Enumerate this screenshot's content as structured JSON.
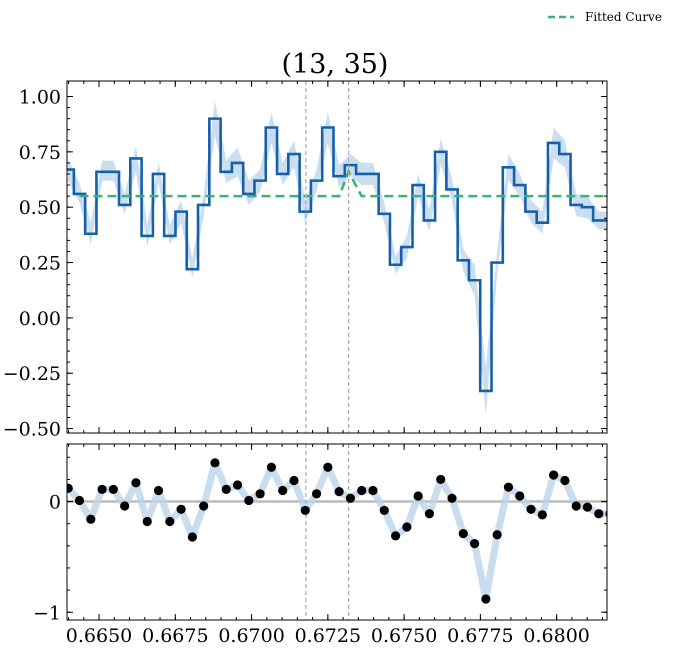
{
  "title": "(13, 35)",
  "legend": {
    "label": "Fitted Curve",
    "color": "#3cb371",
    "placement": "top-right"
  },
  "colors": {
    "data_line": "#1560a8",
    "band": "#a9c8e6",
    "fit": "#3cb371",
    "residual_point": "#000000",
    "residual_band": "#bcd4ea",
    "zero_line": "#bbbbbb",
    "vline": "#aaaaaa"
  },
  "chart_data": [
    {
      "type": "line",
      "panel": "main",
      "drawstyle": "steps-mid",
      "title": "(13, 35)",
      "xlabel": "",
      "ylabel": "",
      "xlim": [
        0.66395,
        0.68165
      ],
      "ylim": [
        -0.52,
        1.07
      ],
      "yticks": [
        -0.5,
        -0.25,
        0.0,
        0.25,
        0.5,
        0.75,
        1.0
      ],
      "ytick_labels": [
        "−0.50",
        "−0.25",
        "0.00",
        "0.25",
        "0.50",
        "0.75",
        "1.00"
      ],
      "vlines": [
        0.67178,
        0.67318
      ],
      "x": [
        0.66399,
        0.66436,
        0.66473,
        0.6651,
        0.66547,
        0.66584,
        0.66621,
        0.66658,
        0.66695,
        0.66732,
        0.66769,
        0.66806,
        0.66843,
        0.6688,
        0.66917,
        0.66954,
        0.66991,
        0.67028,
        0.67065,
        0.67102,
        0.67139,
        0.67176,
        0.67213,
        0.6725,
        0.67287,
        0.67324,
        0.67361,
        0.67398,
        0.67435,
        0.67472,
        0.67509,
        0.67546,
        0.67583,
        0.6762,
        0.67657,
        0.67694,
        0.67731,
        0.67768,
        0.67805,
        0.67842,
        0.67879,
        0.67916,
        0.67953,
        0.6799,
        0.68027,
        0.68064,
        0.68101,
        0.68138,
        0.68175
      ],
      "series": [
        {
          "name": "",
          "values": [
            0.67,
            0.56,
            0.38,
            0.66,
            0.66,
            0.51,
            0.72,
            0.37,
            0.65,
            0.37,
            0.48,
            0.22,
            0.51,
            0.9,
            0.66,
            0.7,
            0.56,
            0.62,
            0.86,
            0.65,
            0.74,
            0.48,
            0.62,
            0.86,
            0.64,
            0.69,
            0.65,
            0.65,
            0.47,
            0.24,
            0.32,
            0.6,
            0.44,
            0.75,
            0.58,
            0.26,
            0.17,
            -0.33,
            0.25,
            0.68,
            0.6,
            0.48,
            0.43,
            0.79,
            0.74,
            0.51,
            0.5,
            0.44,
            0.44
          ],
          "lower": [
            0.62,
            0.52,
            0.33,
            0.62,
            0.62,
            0.47,
            0.66,
            0.32,
            0.61,
            0.33,
            0.43,
            0.18,
            0.46,
            0.82,
            0.61,
            0.64,
            0.51,
            0.57,
            0.79,
            0.6,
            0.68,
            0.43,
            0.57,
            0.79,
            0.59,
            0.64,
            0.6,
            0.6,
            0.43,
            0.2,
            0.27,
            0.55,
            0.39,
            0.69,
            0.53,
            0.21,
            0.1,
            -0.44,
            0.2,
            0.62,
            0.55,
            0.43,
            0.38,
            0.72,
            0.68,
            0.46,
            0.45,
            0.4,
            0.4
          ],
          "upper": [
            0.72,
            0.61,
            0.43,
            0.71,
            0.71,
            0.56,
            0.78,
            0.42,
            0.7,
            0.42,
            0.53,
            0.27,
            0.56,
            0.98,
            0.71,
            0.77,
            0.62,
            0.67,
            0.93,
            0.7,
            0.8,
            0.53,
            0.67,
            0.93,
            0.69,
            0.74,
            0.7,
            0.7,
            0.52,
            0.28,
            0.37,
            0.65,
            0.49,
            0.81,
            0.63,
            0.31,
            0.24,
            -0.22,
            0.3,
            0.74,
            0.65,
            0.53,
            0.48,
            0.86,
            0.8,
            0.56,
            0.55,
            0.48,
            0.48
          ]
        },
        {
          "name": "Fitted Curve",
          "x": [
            0.66436,
            0.6725,
            0.67287,
            0.67318,
            0.67361,
            0.68165
          ],
          "values": [
            0.55,
            0.55,
            0.55,
            0.66,
            0.55,
            0.55
          ]
        }
      ]
    },
    {
      "type": "scatter",
      "panel": "residual",
      "xlim": [
        0.66395,
        0.68165
      ],
      "ylim": [
        -1.07,
        0.52
      ],
      "yticks": [
        -1,
        0
      ],
      "ytick_labels": [
        "−1",
        "0"
      ],
      "xticks": [
        0.665,
        0.6675,
        0.67,
        0.6725,
        0.675,
        0.6775,
        0.68
      ],
      "xtick_labels": [
        "0.6650",
        "0.6675",
        "0.6700",
        "0.6725",
        "0.6750",
        "0.6775",
        "0.6800"
      ],
      "x": [
        0.66399,
        0.66436,
        0.66473,
        0.6651,
        0.66547,
        0.66584,
        0.66621,
        0.66658,
        0.66695,
        0.66732,
        0.66769,
        0.66806,
        0.66843,
        0.6688,
        0.66917,
        0.66954,
        0.66991,
        0.67028,
        0.67065,
        0.67102,
        0.67139,
        0.67176,
        0.67213,
        0.6725,
        0.67287,
        0.67324,
        0.67361,
        0.67398,
        0.67435,
        0.67472,
        0.67509,
        0.67546,
        0.67583,
        0.6762,
        0.67657,
        0.67694,
        0.67731,
        0.67768,
        0.67805,
        0.67842,
        0.67879,
        0.67916,
        0.67953,
        0.6799,
        0.68027,
        0.68064,
        0.68101,
        0.68138,
        0.68175
      ],
      "values": [
        0.12,
        0.01,
        -0.16,
        0.11,
        0.11,
        -0.04,
        0.17,
        -0.18,
        0.1,
        -0.18,
        -0.07,
        -0.32,
        -0.04,
        0.35,
        0.11,
        0.15,
        0.01,
        0.07,
        0.31,
        0.1,
        0.19,
        -0.08,
        0.07,
        0.31,
        0.09,
        0.03,
        0.1,
        0.1,
        -0.08,
        -0.31,
        -0.23,
        0.05,
        -0.11,
        0.2,
        0.03,
        -0.29,
        -0.38,
        -0.88,
        -0.3,
        0.13,
        0.05,
        -0.07,
        -0.12,
        0.24,
        0.19,
        -0.04,
        -0.05,
        -0.11,
        -0.11
      ]
    }
  ]
}
